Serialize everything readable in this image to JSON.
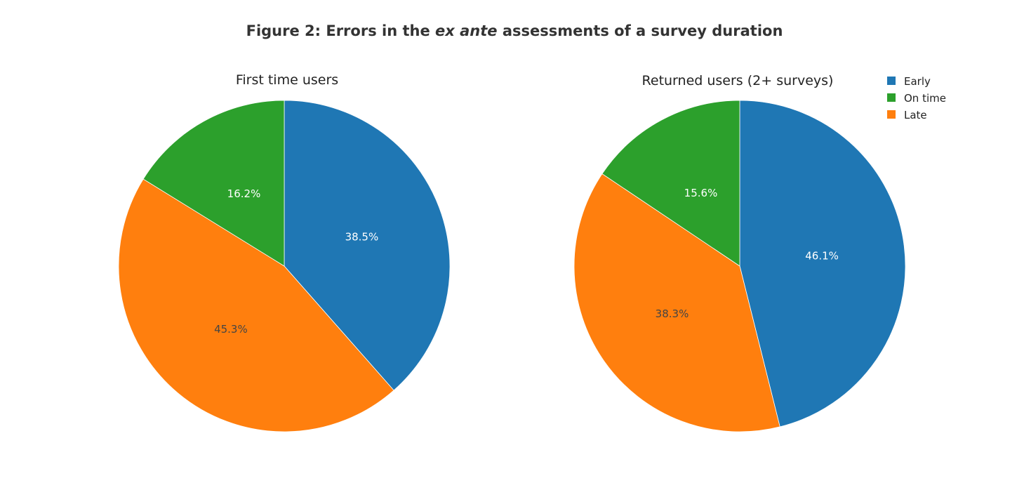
{
  "figure": {
    "title_prefix": "Figure 2: Errors in the ",
    "title_italic": "ex ante",
    "title_suffix": " assessments of a survey duration"
  },
  "legend": {
    "placement": "top-right",
    "items": [
      {
        "label": "Early",
        "color": "#1f77b4"
      },
      {
        "label": "On time",
        "color": "#2ca02c"
      },
      {
        "label": "Late",
        "color": "#ff7f0e"
      }
    ]
  },
  "chart_data": [
    {
      "type": "pie",
      "title": "First time users",
      "slices": [
        {
          "label": "Early",
          "value": 38.5,
          "text": "38.5%",
          "color": "#1f77b4",
          "text_color": "#ffffff"
        },
        {
          "label": "Late",
          "value": 45.3,
          "text": "45.3%",
          "color": "#ff7f0e",
          "text_color": "#444444"
        },
        {
          "label": "On time",
          "value": 16.2,
          "text": "16.2%",
          "color": "#2ca02c",
          "text_color": "#ffffff"
        }
      ]
    },
    {
      "type": "pie",
      "title": "Returned users (2+ surveys)",
      "slices": [
        {
          "label": "Early",
          "value": 46.1,
          "text": "46.1%",
          "color": "#1f77b4",
          "text_color": "#ffffff"
        },
        {
          "label": "Late",
          "value": 38.3,
          "text": "38.3%",
          "color": "#ff7f0e",
          "text_color": "#444444"
        },
        {
          "label": "On time",
          "value": 15.6,
          "text": "15.6%",
          "color": "#2ca02c",
          "text_color": "#ffffff"
        }
      ]
    }
  ]
}
